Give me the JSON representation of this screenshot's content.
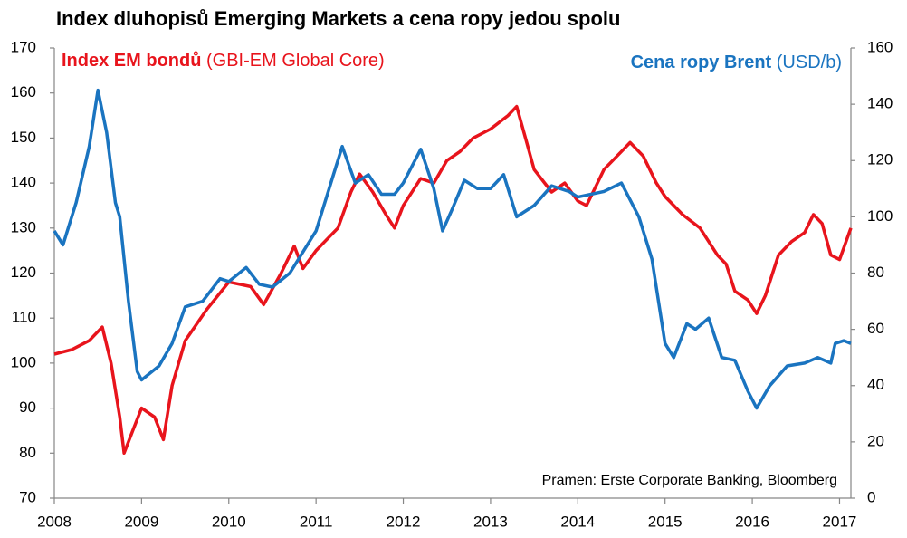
{
  "chart_data": {
    "type": "line",
    "title": "Index dluhopisů Emerging Markets a cena ropy jedou spolu",
    "annotation": "Pramen: Erste Corporate Banking, Bloomberg",
    "xlim": [
      2008,
      2017.13
    ],
    "xticks": [
      2008,
      2009,
      2010,
      2011,
      2012,
      2013,
      2014,
      2015,
      2016,
      2017
    ],
    "ylim": [
      70,
      170
    ],
    "yticks": [
      70,
      80,
      90,
      100,
      110,
      120,
      130,
      140,
      150,
      160,
      170
    ],
    "y2lim": [
      0,
      160
    ],
    "y2ticks": [
      0,
      20,
      40,
      60,
      80,
      100,
      120,
      140,
      160
    ],
    "series": [
      {
        "name": "Index EM bondů",
        "unit": "(GBI-EM Global Core)",
        "color": "#e8141c",
        "axis": "y",
        "x": [
          2008,
          2008.2,
          2008.4,
          2008.55,
          2008.65,
          2008.75,
          2008.8,
          2008.9,
          2009,
          2009.15,
          2009.25,
          2009.35,
          2009.5,
          2009.75,
          2010,
          2010.25,
          2010.4,
          2010.6,
          2010.75,
          2010.85,
          2011,
          2011.1,
          2011.25,
          2011.4,
          2011.5,
          2011.65,
          2011.8,
          2011.9,
          2012,
          2012.2,
          2012.35,
          2012.5,
          2012.65,
          2012.8,
          2013,
          2013.2,
          2013.3,
          2013.4,
          2013.5,
          2013.7,
          2013.85,
          2014,
          2014.1,
          2014.3,
          2014.5,
          2014.6,
          2014.75,
          2014.9,
          2015,
          2015.2,
          2015.4,
          2015.6,
          2015.7,
          2015.8,
          2015.95,
          2016.05,
          2016.15,
          2016.3,
          2016.45,
          2016.6,
          2016.7,
          2016.8,
          2016.9,
          2017,
          2017.13
        ],
        "values": [
          102,
          103,
          105,
          108,
          100,
          88,
          80,
          85,
          90,
          88,
          83,
          95,
          105,
          112,
          118,
          117,
          113,
          120,
          126,
          121,
          125,
          127,
          130,
          138,
          142,
          138,
          133,
          130,
          135,
          141,
          140,
          145,
          147,
          150,
          152,
          155,
          157,
          150,
          143,
          138,
          140,
          136,
          135,
          143,
          147,
          149,
          146,
          140,
          137,
          133,
          130,
          124,
          122,
          116,
          114,
          111,
          115,
          124,
          127,
          129,
          133,
          131,
          124,
          123,
          130
        ]
      },
      {
        "name": "Cena ropy Brent",
        "unit": "(USD/b)",
        "color": "#1a74c0",
        "axis": "y2",
        "x": [
          2008,
          2008.1,
          2008.25,
          2008.4,
          2008.5,
          2008.6,
          2008.7,
          2008.75,
          2008.85,
          2008.95,
          2009,
          2009.2,
          2009.35,
          2009.5,
          2009.7,
          2009.9,
          2010,
          2010.2,
          2010.35,
          2010.5,
          2010.7,
          2010.9,
          2011,
          2011.2,
          2011.3,
          2011.45,
          2011.6,
          2011.75,
          2011.9,
          2012,
          2012.2,
          2012.35,
          2012.45,
          2012.55,
          2012.7,
          2012.85,
          2013,
          2013.15,
          2013.3,
          2013.5,
          2013.7,
          2013.9,
          2014,
          2014.3,
          2014.5,
          2014.7,
          2014.85,
          2015,
          2015.1,
          2015.25,
          2015.35,
          2015.5,
          2015.65,
          2015.8,
          2015.95,
          2016.05,
          2016.2,
          2016.4,
          2016.6,
          2016.75,
          2016.9,
          2016.95,
          2017.05,
          2017.13
        ],
        "values": [
          95,
          90,
          105,
          125,
          145,
          130,
          105,
          100,
          70,
          45,
          42,
          47,
          55,
          68,
          70,
          78,
          77,
          82,
          76,
          75,
          80,
          90,
          95,
          115,
          125,
          112,
          115,
          108,
          108,
          112,
          124,
          110,
          95,
          102,
          113,
          110,
          110,
          115,
          100,
          104,
          111,
          109,
          107,
          109,
          112,
          100,
          85,
          55,
          50,
          62,
          60,
          64,
          50,
          49,
          38,
          32,
          40,
          47,
          48,
          50,
          48,
          55,
          56,
          55
        ]
      }
    ]
  }
}
